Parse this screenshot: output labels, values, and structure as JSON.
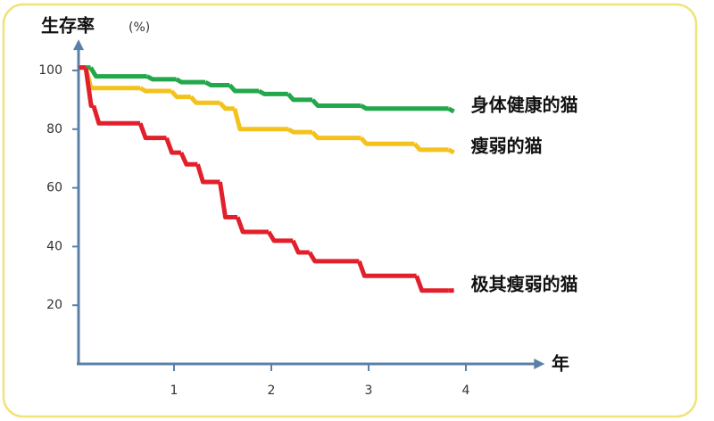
{
  "chart_data": {
    "type": "step-line",
    "y_label": "生存率",
    "y_label_unit": "(%)",
    "x_label": "年",
    "xlim": [
      0,
      4.7
    ],
    "ylim": [
      0,
      110
    ],
    "xticks": [
      1,
      2,
      3,
      4
    ],
    "yticks": [
      20,
      40,
      60,
      80,
      100
    ],
    "series": [
      {
        "name": "身体健康的猫",
        "color": "#22a84a",
        "x": [
          0.05,
          0.17,
          0.75,
          1.05,
          1.35,
          1.6,
          1.9,
          2.2,
          2.45,
          2.95,
          3.85
        ],
        "values": [
          101,
          98,
          97,
          96,
          95,
          93,
          92,
          90,
          88,
          87,
          86
        ]
      },
      {
        "name": "瘦弱的猫",
        "color": "#f4c21c",
        "x": [
          0.05,
          0.12,
          0.68,
          1.0,
          1.2,
          1.5,
          1.65,
          2.2,
          2.45,
          2.95,
          3.5,
          3.85
        ],
        "values": [
          101,
          94,
          93,
          91,
          89,
          87,
          80,
          79,
          77,
          75,
          73,
          72
        ]
      },
      {
        "name": "极其瘦弱的猫",
        "color": "#e2202b",
        "x": [
          0.05,
          0.12,
          0.2,
          0.68,
          0.95,
          1.1,
          1.27,
          1.5,
          1.68,
          2.0,
          2.25,
          2.42,
          2.93,
          3.52,
          3.85
        ],
        "values": [
          101,
          88,
          82,
          77,
          72,
          68,
          62,
          50,
          45,
          42,
          38,
          35,
          30,
          25,
          25
        ]
      }
    ]
  }
}
